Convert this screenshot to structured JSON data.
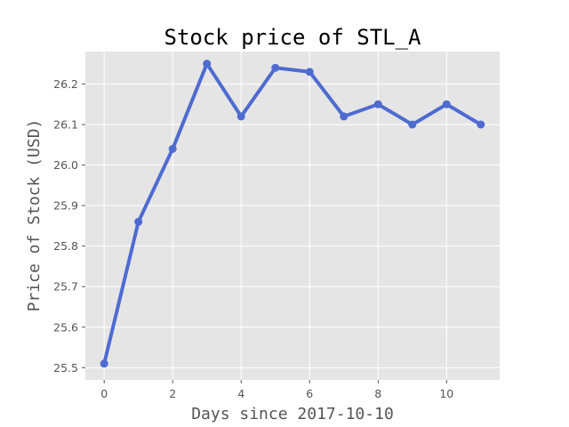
{
  "chart_data": {
    "type": "line",
    "title": "Stock price of STL_A",
    "xlabel": "Days since 2017-10-10",
    "ylabel": "Price of Stock (USD)",
    "xlim": [
      -0.55,
      11.55
    ],
    "ylim": [
      25.47,
      26.28
    ],
    "xticks": [
      0,
      2,
      4,
      6,
      8,
      10
    ],
    "xtick_labels": [
      "0",
      "2",
      "4",
      "6",
      "8",
      "10"
    ],
    "yticks": [
      25.5,
      25.6,
      25.7,
      25.8,
      25.9,
      26.0,
      26.1,
      26.2
    ],
    "ytick_labels": [
      "25.5",
      "25.6",
      "25.7",
      "25.8",
      "25.9",
      "26.0",
      "26.1",
      "26.2"
    ],
    "grid": true,
    "series": [
      {
        "color": "#4e6bd1",
        "marker": "circle",
        "x": [
          0,
          1,
          2,
          3,
          4,
          5,
          6,
          7,
          8,
          9,
          10,
          11
        ],
        "values": [
          25.51,
          25.86,
          26.04,
          26.25,
          26.12,
          26.24,
          26.23,
          26.12,
          26.15,
          26.1,
          26.15,
          26.1
        ]
      }
    ],
    "background_color": "#e5e5e5",
    "grid_color": "#ffffff"
  }
}
